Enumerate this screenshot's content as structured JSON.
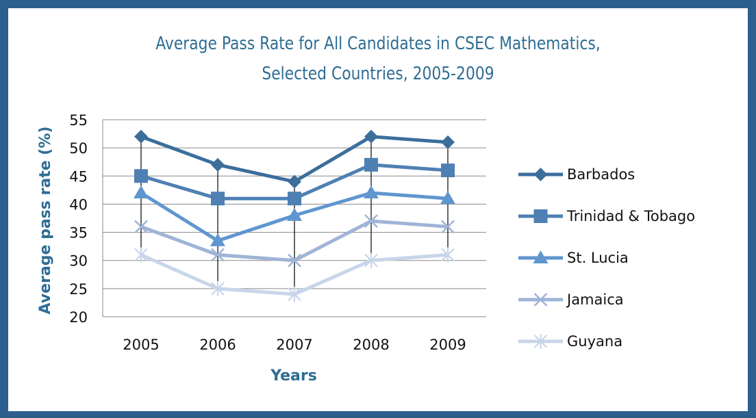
{
  "chart_data": {
    "type": "line",
    "title_line1": "Average Pass Rate for All Candidates in CSEC Mathematics,",
    "title_line2": "Selected Countries, 2005-2009",
    "xlabel": "Years",
    "ylabel": "Average pass rate (%)",
    "categories": [
      "2005",
      "2006",
      "2007",
      "2008",
      "2009"
    ],
    "ylim": [
      20,
      55
    ],
    "yticks": [
      20,
      25,
      30,
      35,
      40,
      45,
      50,
      55
    ],
    "grid": true,
    "legend_position": "right",
    "series": [
      {
        "name": "Barbados",
        "values": [
          52,
          47,
          44,
          52,
          51
        ],
        "color": "#3c6e9c",
        "marker": "diamond"
      },
      {
        "name": "Trinidad & Tobago",
        "values": [
          45,
          41,
          41,
          47,
          46
        ],
        "color": "#4f80b3",
        "marker": "square"
      },
      {
        "name": "St. Lucia",
        "values": [
          42,
          33.5,
          38,
          42,
          41
        ],
        "color": "#5f96cf",
        "marker": "triangle"
      },
      {
        "name": "Jamaica",
        "values": [
          36,
          31,
          30,
          37,
          36
        ],
        "color": "#9fb4d6",
        "marker": "x"
      },
      {
        "name": "Guyana",
        "values": [
          31,
          25,
          24,
          30,
          31
        ],
        "color": "#c8d5ea",
        "marker": "star"
      }
    ]
  }
}
